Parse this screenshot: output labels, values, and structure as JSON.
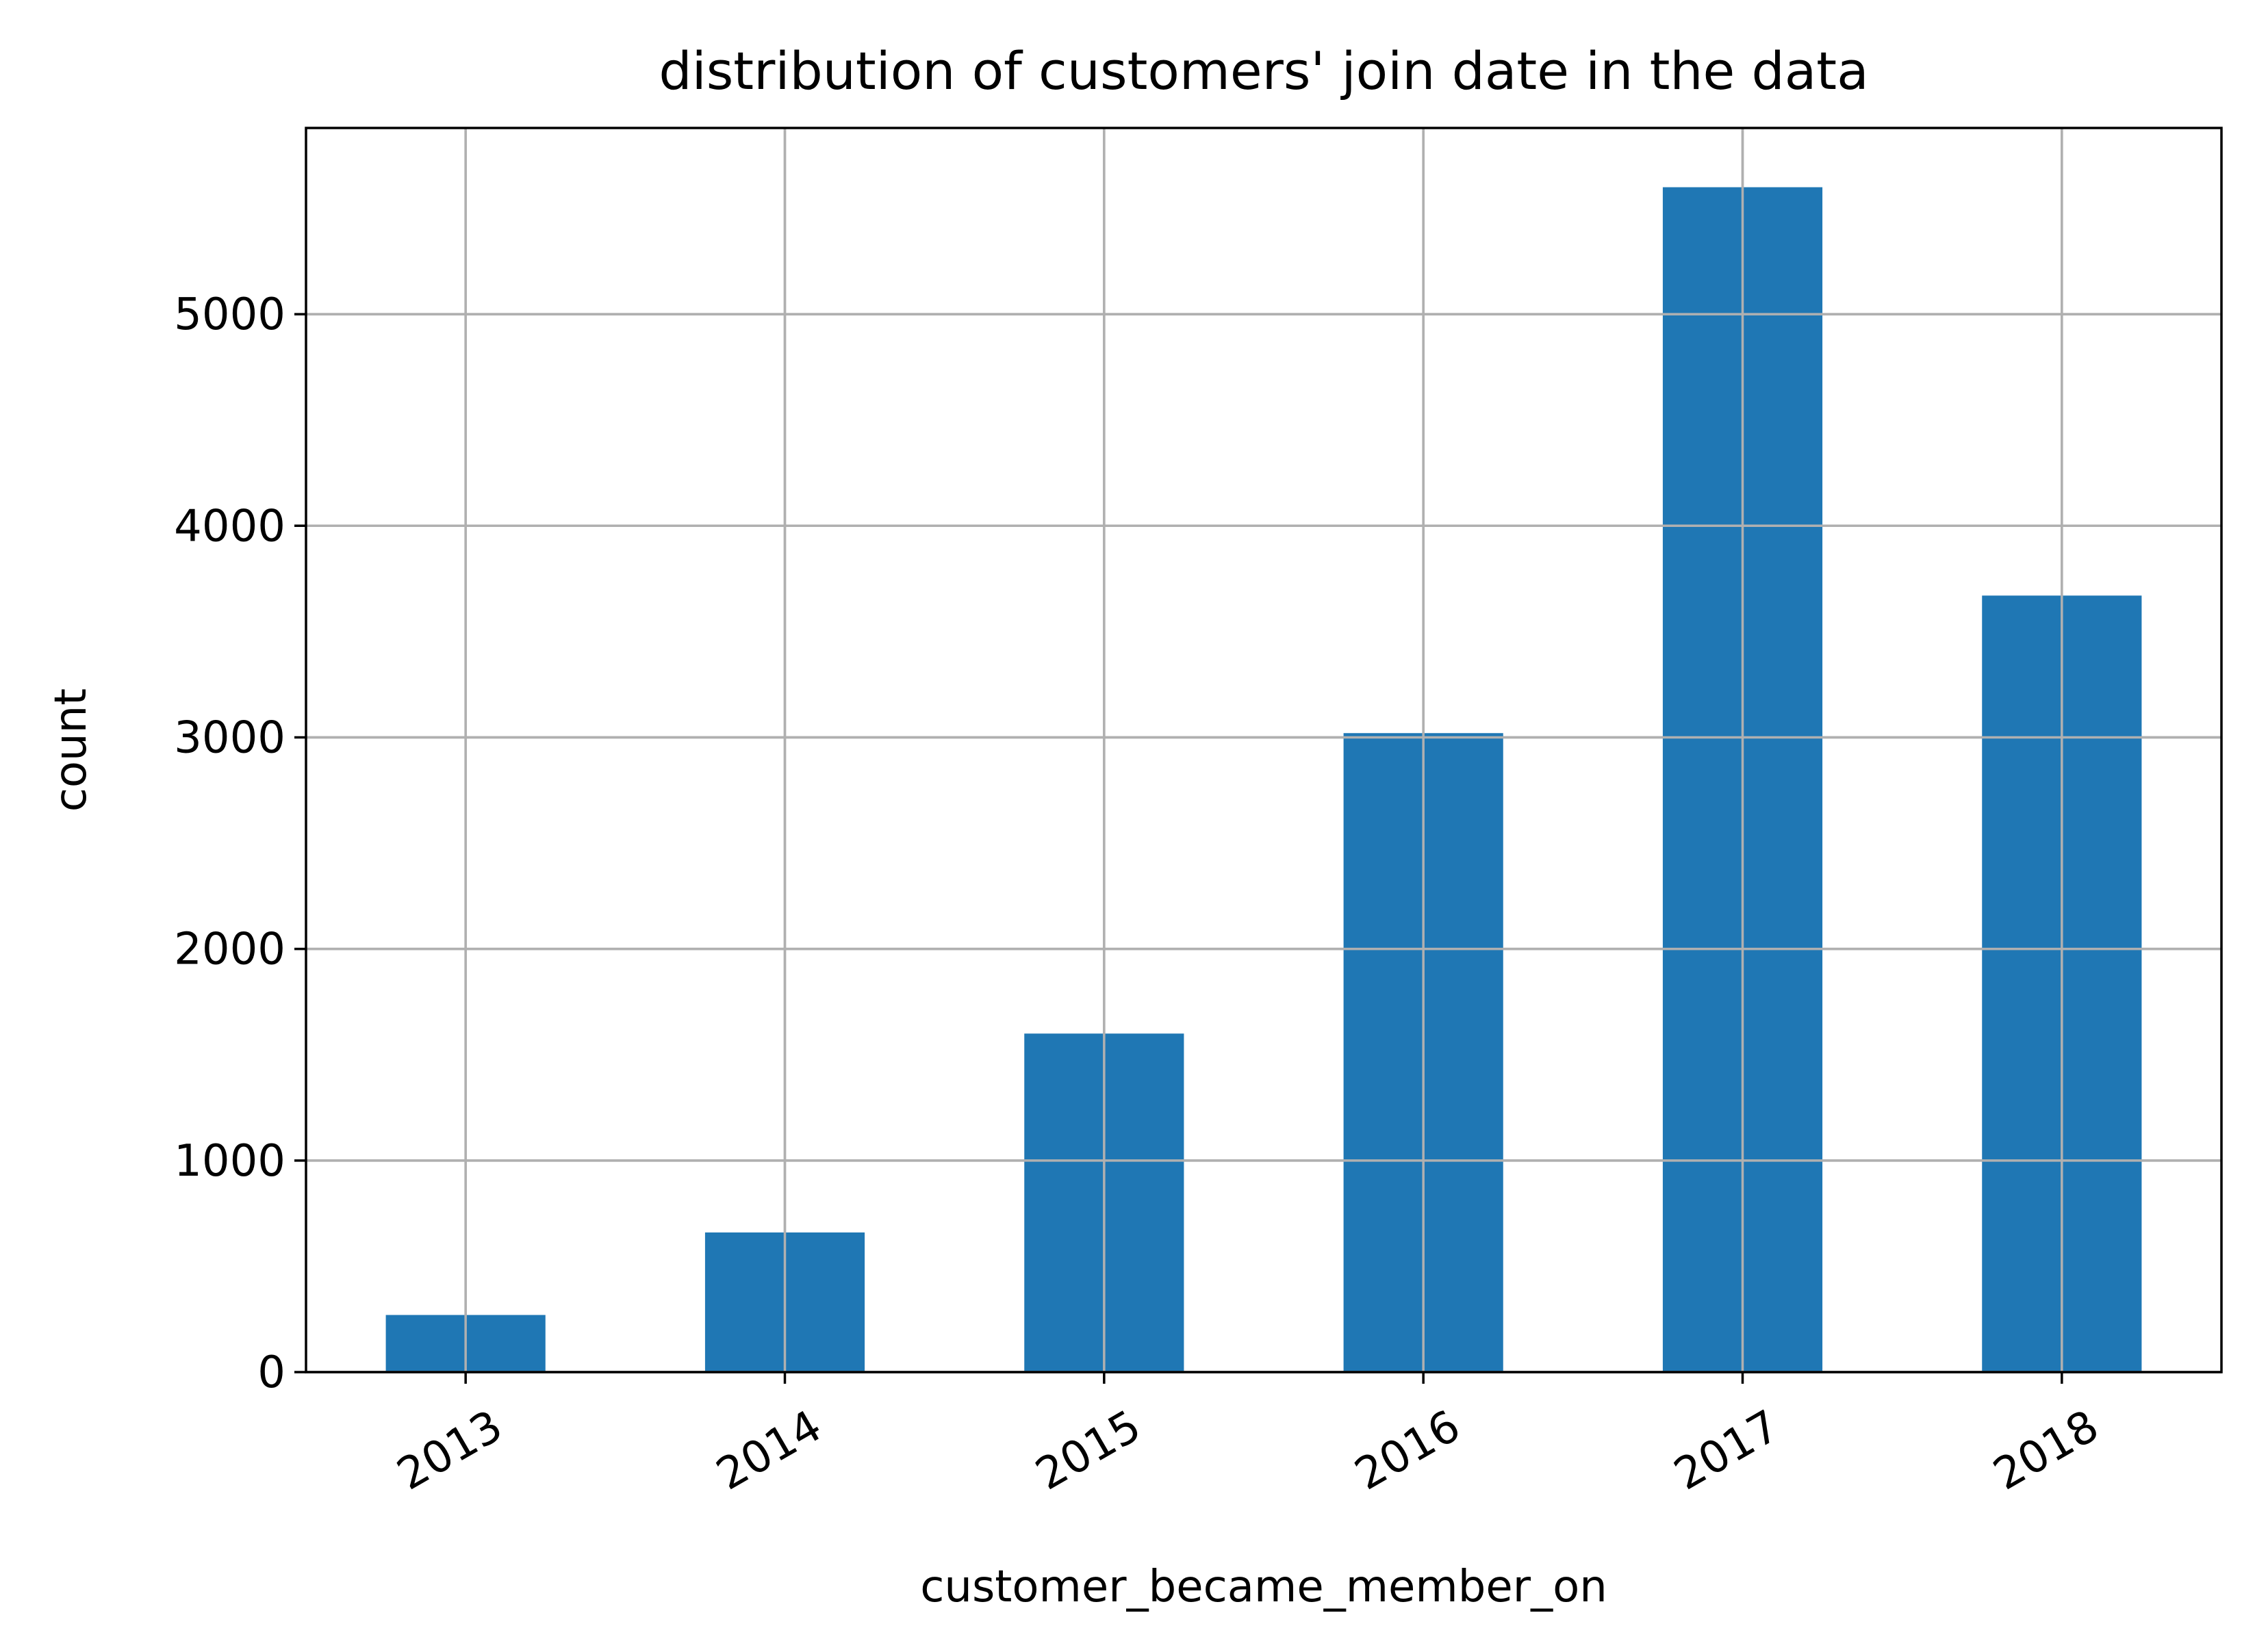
{
  "chart_data": {
    "type": "bar",
    "title": "distribution of customers' join date in the data",
    "xlabel": "customer_became_member_on",
    "ylabel": "count",
    "categories": [
      "2013",
      "2014",
      "2015",
      "2016",
      "2017",
      "2018"
    ],
    "values": [
      270,
      660,
      1600,
      3020,
      5600,
      3670
    ],
    "ylim": [
      0,
      5880
    ],
    "yticks": [
      0,
      1000,
      2000,
      3000,
      4000,
      5000
    ],
    "x_tick_rotation_deg": 30,
    "grid": true,
    "legend": "none",
    "bar_color": "#1f77b4",
    "grid_color": "#b0b0b0"
  }
}
